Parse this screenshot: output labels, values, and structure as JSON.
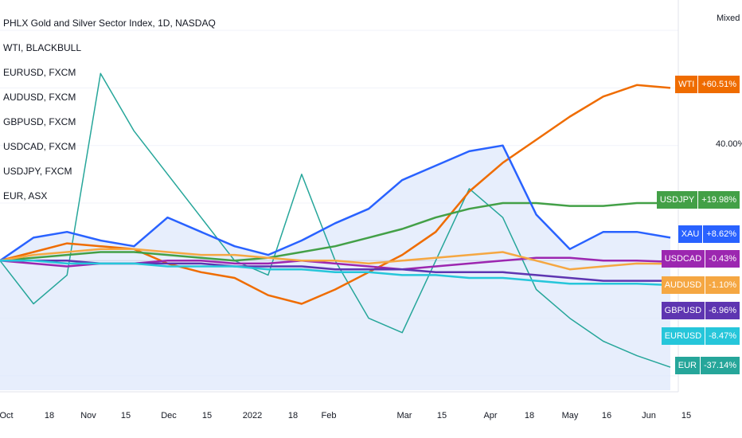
{
  "chart_data": {
    "type": "line",
    "title": "PHLX Gold and Silver Sector Index, 1D, NASDAQ",
    "scale_mode": "Mixed",
    "legend": [
      "WTI, BLACKBULL",
      "EURUSD, FXCM",
      "AUDUSD, FXCM",
      "GBPUSD, FXCM",
      "USDCAD, FXCM",
      "USDJPY, FXCM",
      "EUR, ASX"
    ],
    "legend_placement": "top-left",
    "x_ticks": [
      "Oct",
      "18",
      "Nov",
      "15",
      "Dec",
      "15",
      "2022",
      "18",
      "Feb",
      "Mar",
      "15",
      "Apr",
      "18",
      "May",
      "16",
      "Jun",
      "15"
    ],
    "y_ticks": [
      "40.00%"
    ],
    "ylim": [
      -45,
      85
    ],
    "series": [
      {
        "name": "WTI",
        "label": "+60.51%",
        "color": "#ef6c00",
        "values": [
          0,
          3,
          6,
          5,
          4,
          -1,
          -4,
          -6,
          -12,
          -15,
          -10,
          -4,
          2,
          10,
          24,
          34,
          42,
          50,
          57,
          61,
          60
        ]
      },
      {
        "name": "USDJPY",
        "label": "+19.98%",
        "color": "#43a047",
        "values": [
          0,
          1,
          2,
          3,
          3,
          2,
          1,
          0,
          1,
          3,
          5,
          8,
          11,
          15,
          18,
          20,
          20,
          19,
          19,
          20,
          20
        ]
      },
      {
        "name": "XAU",
        "label": "+8.62%",
        "color": "#2962ff",
        "values": [
          0,
          8,
          10,
          7,
          5,
          15,
          10,
          5,
          2,
          7,
          13,
          18,
          28,
          33,
          38,
          40,
          16,
          4,
          10,
          10,
          8
        ]
      },
      {
        "name": "USDCAD",
        "label": "-0.43%",
        "color": "#9c27b0",
        "values": [
          0,
          -1,
          -2,
          -1,
          -1,
          0,
          0,
          -1,
          -1,
          0,
          -1,
          -2,
          -3,
          -2,
          -1,
          0,
          1,
          1,
          0,
          0,
          -0.4
        ]
      },
      {
        "name": "AUDUSD",
        "label": "-1.10%",
        "color": "#f5a742",
        "values": [
          0,
          2,
          3,
          4,
          4,
          3,
          2,
          2,
          1,
          0,
          0,
          -1,
          0,
          1,
          2,
          3,
          0,
          -3,
          -2,
          -1,
          -1.1
        ]
      },
      {
        "name": "GBPUSD",
        "label": "-6.96%",
        "color": "#5e35b1",
        "values": [
          0,
          0,
          0,
          -1,
          -1,
          -1,
          -1,
          -2,
          -2,
          -2,
          -3,
          -3,
          -3,
          -4,
          -4,
          -4,
          -5,
          -6,
          -7,
          -7,
          -7
        ]
      },
      {
        "name": "EURUSD",
        "label": "-8.47%",
        "color": "#26c6da",
        "values": [
          0,
          0,
          -1,
          -1,
          -1,
          -2,
          -2,
          -2,
          -3,
          -3,
          -4,
          -4,
          -5,
          -5,
          -6,
          -6,
          -7,
          -8,
          -8,
          -8,
          -8.5
        ]
      },
      {
        "name": "EUR",
        "label": "-37.14%",
        "color": "#26a69a",
        "values": [
          0,
          -15,
          -5,
          65,
          45,
          30,
          15,
          0,
          -5,
          30,
          0,
          -20,
          -25,
          0,
          25,
          15,
          -10,
          -20,
          -28,
          -33,
          -37
        ]
      }
    ]
  }
}
